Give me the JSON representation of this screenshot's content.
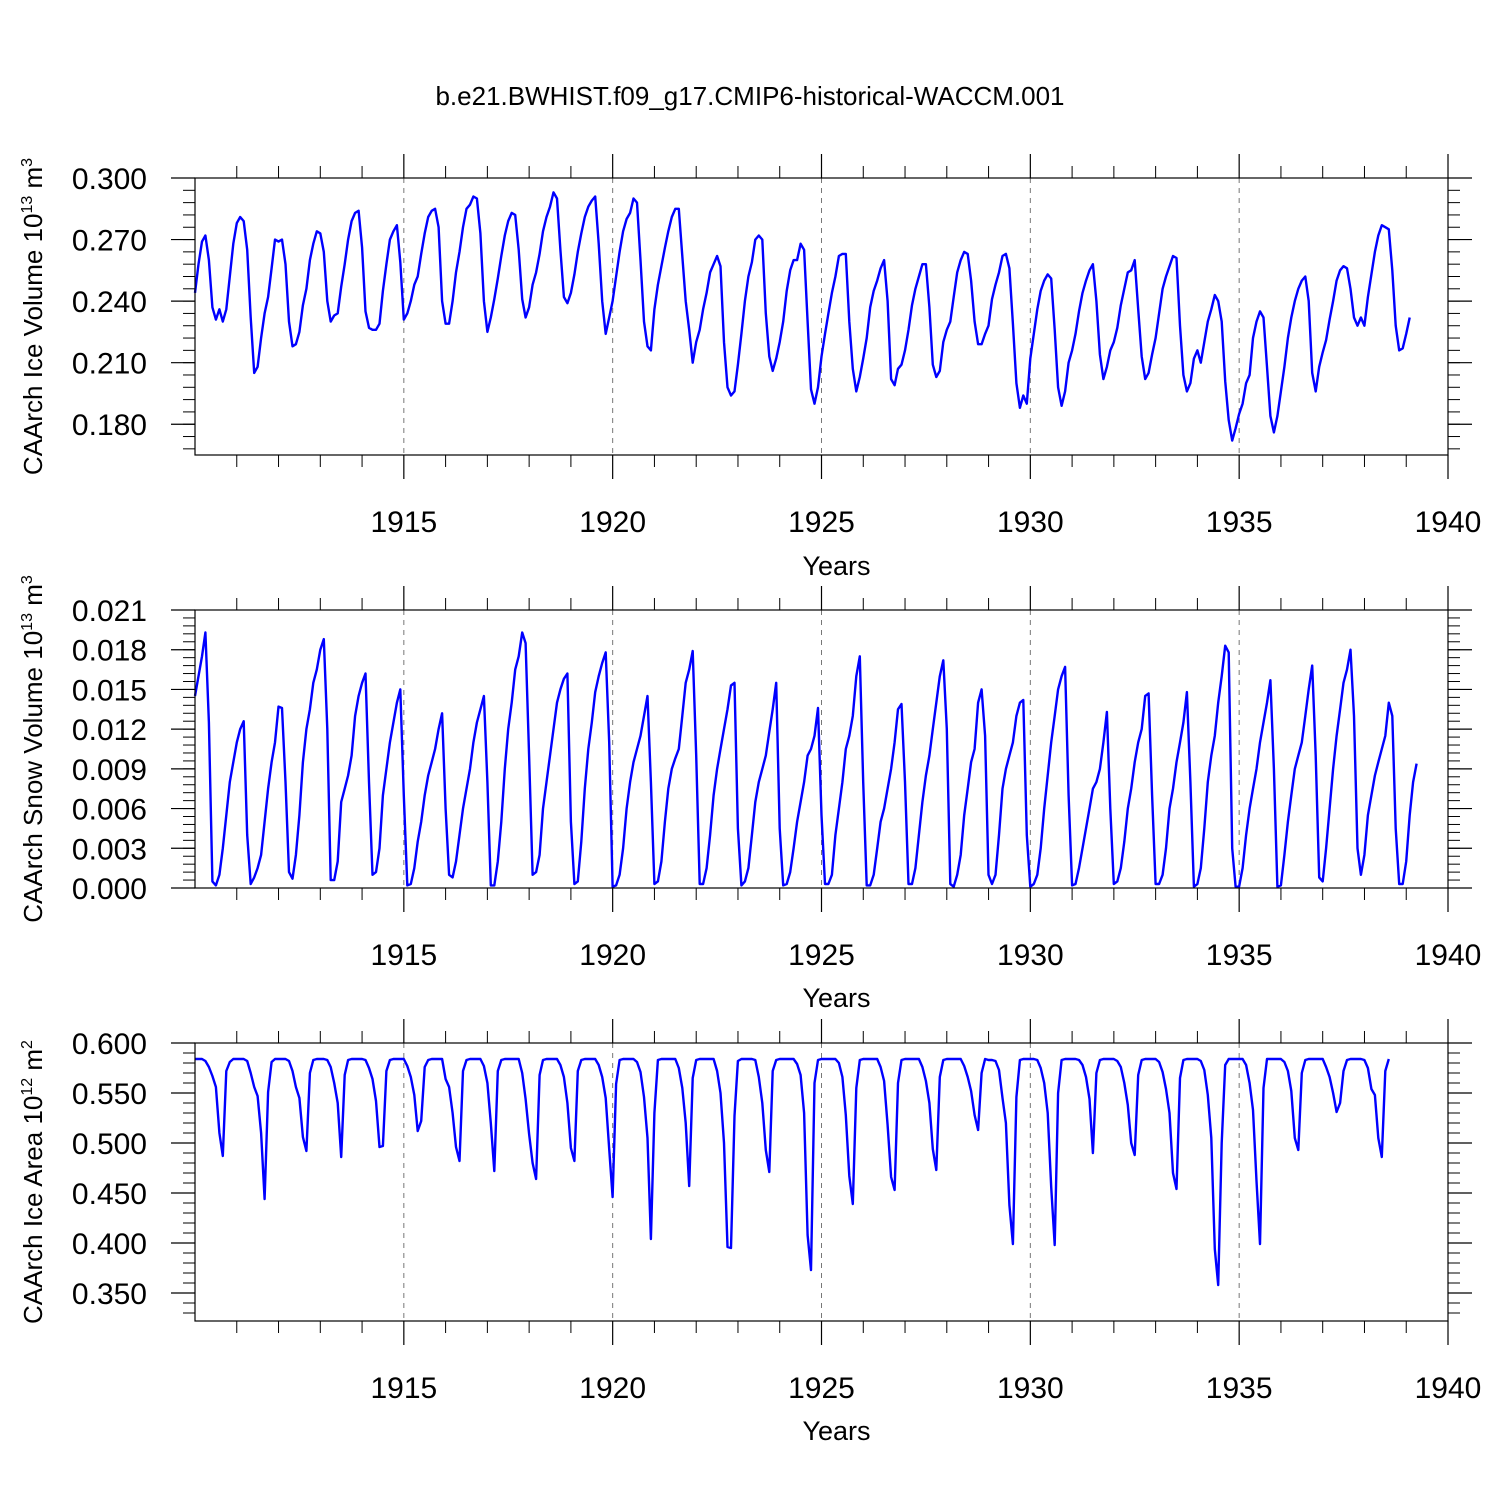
{
  "title": "b.e21.BWHIST.f09_g17.CMIP6-historical-WACCM.001",
  "chart_data": [
    {
      "type": "line",
      "name": "ice-volume",
      "ylabel": {
        "text": "CAArch Ice Volume 10",
        "exp": "13",
        "unit": "m",
        "unit_exp": "3"
      },
      "xlabel": "Years",
      "xlim": [
        1910.0,
        1940.0
      ],
      "ylim": [
        0.165,
        0.3
      ],
      "yticks": [
        "0.300",
        "0.270",
        "0.240",
        "0.210",
        "0.180"
      ],
      "ytick_values": [
        0.3,
        0.27,
        0.24,
        0.21,
        0.18
      ],
      "xticks": [
        "1915",
        "1920",
        "1925",
        "1930",
        "1935",
        "1940"
      ],
      "xtick_values": [
        1915,
        1920,
        1925,
        1930,
        1935,
        1940
      ],
      "color": "#0000ff",
      "x_start": 1910.0,
      "x_step": 0.08333,
      "values": [
        0.244,
        0.258,
        0.269,
        0.272,
        0.26,
        0.237,
        0.231,
        0.236,
        0.23,
        0.236,
        0.252,
        0.268,
        0.278,
        0.281,
        0.279,
        0.265,
        0.232,
        0.205,
        0.208,
        0.222,
        0.234,
        0.242,
        0.256,
        0.27,
        0.269,
        0.27,
        0.258,
        0.23,
        0.218,
        0.219,
        0.225,
        0.238,
        0.246,
        0.26,
        0.268,
        0.274,
        0.273,
        0.264,
        0.24,
        0.23,
        0.233,
        0.234,
        0.247,
        0.258,
        0.27,
        0.279,
        0.283,
        0.284,
        0.266,
        0.235,
        0.227,
        0.226,
        0.226,
        0.229,
        0.245,
        0.258,
        0.27,
        0.274,
        0.277,
        0.259,
        0.231,
        0.234,
        0.24,
        0.248,
        0.252,
        0.263,
        0.273,
        0.281,
        0.284,
        0.285,
        0.276,
        0.24,
        0.229,
        0.229,
        0.24,
        0.254,
        0.264,
        0.276,
        0.285,
        0.287,
        0.291,
        0.29,
        0.273,
        0.24,
        0.225,
        0.232,
        0.241,
        0.251,
        0.262,
        0.272,
        0.279,
        0.283,
        0.282,
        0.265,
        0.241,
        0.232,
        0.237,
        0.248,
        0.254,
        0.263,
        0.274,
        0.281,
        0.286,
        0.293,
        0.29,
        0.265,
        0.242,
        0.239,
        0.244,
        0.253,
        0.264,
        0.273,
        0.281,
        0.286,
        0.289,
        0.291,
        0.268,
        0.24,
        0.224,
        0.232,
        0.24,
        0.252,
        0.264,
        0.274,
        0.28,
        0.283,
        0.29,
        0.288,
        0.26,
        0.23,
        0.218,
        0.216,
        0.236,
        0.248,
        0.257,
        0.266,
        0.274,
        0.281,
        0.285,
        0.285,
        0.262,
        0.24,
        0.226,
        0.21,
        0.22,
        0.226,
        0.236,
        0.244,
        0.254,
        0.258,
        0.262,
        0.257,
        0.22,
        0.198,
        0.194,
        0.196,
        0.209,
        0.224,
        0.24,
        0.252,
        0.259,
        0.27,
        0.272,
        0.27,
        0.234,
        0.213,
        0.206,
        0.212,
        0.22,
        0.23,
        0.245,
        0.255,
        0.26,
        0.26,
        0.268,
        0.265,
        0.23,
        0.197,
        0.19,
        0.198,
        0.213,
        0.224,
        0.234,
        0.244,
        0.252,
        0.262,
        0.263,
        0.263,
        0.23,
        0.207,
        0.196,
        0.203,
        0.212,
        0.222,
        0.237,
        0.245,
        0.25,
        0.256,
        0.26,
        0.24,
        0.202,
        0.199,
        0.207,
        0.209,
        0.216,
        0.226,
        0.238,
        0.246,
        0.252,
        0.258,
        0.258,
        0.237,
        0.209,
        0.203,
        0.206,
        0.22,
        0.226,
        0.23,
        0.242,
        0.254,
        0.26,
        0.264,
        0.263,
        0.25,
        0.23,
        0.219,
        0.219,
        0.224,
        0.228,
        0.241,
        0.248,
        0.254,
        0.262,
        0.263,
        0.256,
        0.229,
        0.2,
        0.188,
        0.194,
        0.19,
        0.212,
        0.224,
        0.236,
        0.245,
        0.25,
        0.253,
        0.251,
        0.226,
        0.198,
        0.189,
        0.196,
        0.21,
        0.216,
        0.224,
        0.235,
        0.244,
        0.25,
        0.255,
        0.258,
        0.24,
        0.214,
        0.202,
        0.208,
        0.216,
        0.22,
        0.227,
        0.238,
        0.246,
        0.254,
        0.255,
        0.26,
        0.236,
        0.213,
        0.202,
        0.205,
        0.214,
        0.222,
        0.234,
        0.246,
        0.252,
        0.257,
        0.262,
        0.261,
        0.228,
        0.204,
        0.196,
        0.2,
        0.212,
        0.216,
        0.21,
        0.22,
        0.23,
        0.236,
        0.243,
        0.24,
        0.23,
        0.201,
        0.182,
        0.172,
        0.178,
        0.185,
        0.19,
        0.2,
        0.204,
        0.222,
        0.23,
        0.235,
        0.232,
        0.208,
        0.184,
        0.176,
        0.184,
        0.196,
        0.208,
        0.222,
        0.232,
        0.24,
        0.246,
        0.25,
        0.252,
        0.24,
        0.205,
        0.196,
        0.208,
        0.215,
        0.221,
        0.231,
        0.24,
        0.25,
        0.255,
        0.257,
        0.256,
        0.246,
        0.232,
        0.228,
        0.232,
        0.228,
        0.242,
        0.253,
        0.264,
        0.272,
        0.277,
        0.276,
        0.275,
        0.255,
        0.228,
        0.216,
        0.217,
        0.224,
        0.232
      ]
    },
    {
      "type": "line",
      "name": "snow-volume",
      "ylabel": {
        "text": "CAArch Snow Volume 10",
        "exp": "13",
        "unit": "m",
        "unit_exp": "3"
      },
      "xlabel": "Years",
      "xlim": [
        1910.0,
        1940.0
      ],
      "ylim": [
        0.0,
        0.021
      ],
      "yticks": [
        "0.021",
        "0.018",
        "0.015",
        "0.012",
        "0.009",
        "0.006",
        "0.003",
        "0.000"
      ],
      "ytick_values": [
        0.021,
        0.018,
        0.015,
        0.012,
        0.009,
        0.006,
        0.003,
        0.0
      ],
      "xticks": [
        "1915",
        "1920",
        "1925",
        "1930",
        "1935",
        "1940"
      ],
      "xtick_values": [
        1915,
        1920,
        1925,
        1930,
        1935,
        1940
      ],
      "color": "#0000ff",
      "x_start": 1910.0,
      "x_step": 0.08333,
      "values": [
        0.0145,
        0.016,
        0.0175,
        0.0193,
        0.0125,
        0.0005,
        0.0002,
        0.001,
        0.003,
        0.0055,
        0.008,
        0.0095,
        0.011,
        0.012,
        0.0126,
        0.004,
        0.0003,
        0.0008,
        0.0015,
        0.0025,
        0.005,
        0.0075,
        0.0095,
        0.011,
        0.0137,
        0.0136,
        0.008,
        0.0012,
        0.0007,
        0.0025,
        0.0055,
        0.0095,
        0.012,
        0.0135,
        0.0155,
        0.0165,
        0.018,
        0.0188,
        0.012,
        0.0006,
        0.0006,
        0.002,
        0.0065,
        0.0075,
        0.0085,
        0.01,
        0.013,
        0.0145,
        0.0155,
        0.0162,
        0.008,
        0.001,
        0.0012,
        0.003,
        0.007,
        0.009,
        0.011,
        0.0125,
        0.014,
        0.015,
        0.007,
        0.0002,
        0.0003,
        0.0015,
        0.0035,
        0.005,
        0.007,
        0.0085,
        0.0095,
        0.0105,
        0.012,
        0.0132,
        0.006,
        0.001,
        0.0008,
        0.002,
        0.004,
        0.006,
        0.0075,
        0.009,
        0.011,
        0.0125,
        0.0135,
        0.0145,
        0.008,
        0.0002,
        0.0002,
        0.002,
        0.005,
        0.009,
        0.012,
        0.014,
        0.0165,
        0.0175,
        0.0193,
        0.0185,
        0.01,
        0.001,
        0.0012,
        0.0025,
        0.006,
        0.008,
        0.01,
        0.012,
        0.014,
        0.015,
        0.0158,
        0.0162,
        0.005,
        0.0003,
        0.0005,
        0.0035,
        0.0075,
        0.0105,
        0.0125,
        0.0148,
        0.016,
        0.017,
        0.0178,
        0.011,
        0.0001,
        0.0002,
        0.001,
        0.003,
        0.006,
        0.008,
        0.0095,
        0.0105,
        0.0115,
        0.013,
        0.0145,
        0.008,
        0.0003,
        0.0005,
        0.002,
        0.005,
        0.0075,
        0.009,
        0.0098,
        0.0105,
        0.013,
        0.0155,
        0.0165,
        0.0179,
        0.01,
        0.0003,
        0.0003,
        0.0015,
        0.004,
        0.007,
        0.009,
        0.0105,
        0.012,
        0.0135,
        0.0153,
        0.0155,
        0.0045,
        0.0002,
        0.0005,
        0.0015,
        0.004,
        0.0065,
        0.008,
        0.009,
        0.01,
        0.0118,
        0.0135,
        0.0155,
        0.0045,
        0.0002,
        0.0003,
        0.0012,
        0.003,
        0.005,
        0.0065,
        0.008,
        0.01,
        0.0105,
        0.0115,
        0.0136,
        0.0055,
        0.0003,
        0.0003,
        0.001,
        0.004,
        0.006,
        0.008,
        0.0105,
        0.0115,
        0.013,
        0.016,
        0.0175,
        0.008,
        0.0002,
        0.0002,
        0.001,
        0.003,
        0.005,
        0.006,
        0.0075,
        0.009,
        0.011,
        0.0135,
        0.0139,
        0.008,
        0.0003,
        0.0003,
        0.0015,
        0.004,
        0.0065,
        0.0085,
        0.01,
        0.012,
        0.014,
        0.016,
        0.0172,
        0.012,
        0.0003,
        0.0001,
        0.001,
        0.0025,
        0.0055,
        0.0075,
        0.0095,
        0.0105,
        0.014,
        0.015,
        0.0115,
        0.001,
        0.0003,
        0.001,
        0.004,
        0.0075,
        0.009,
        0.01,
        0.011,
        0.013,
        0.014,
        0.0142,
        0.004,
        0.0001,
        0.0003,
        0.001,
        0.003,
        0.006,
        0.0085,
        0.011,
        0.013,
        0.015,
        0.016,
        0.0167,
        0.007,
        0.0002,
        0.0003,
        0.0015,
        0.003,
        0.0045,
        0.006,
        0.0075,
        0.008,
        0.009,
        0.011,
        0.0133,
        0.006,
        0.0003,
        0.0005,
        0.0015,
        0.0035,
        0.006,
        0.0075,
        0.0095,
        0.011,
        0.012,
        0.0145,
        0.0147,
        0.007,
        0.0003,
        0.0003,
        0.001,
        0.003,
        0.006,
        0.0075,
        0.0095,
        0.011,
        0.0125,
        0.0148,
        0.008,
        0.0001,
        0.0003,
        0.0015,
        0.0045,
        0.008,
        0.01,
        0.0115,
        0.014,
        0.016,
        0.0183,
        0.0178,
        0.003,
        0.0001,
        0.0001,
        0.0015,
        0.004,
        0.006,
        0.0075,
        0.009,
        0.011,
        0.0125,
        0.014,
        0.0157,
        0.009,
        0.0001,
        0.0002,
        0.0025,
        0.005,
        0.007,
        0.009,
        0.01,
        0.011,
        0.013,
        0.015,
        0.0168,
        0.01,
        0.0008,
        0.0005,
        0.003,
        0.006,
        0.009,
        0.0115,
        0.0135,
        0.0155,
        0.0165,
        0.018,
        0.013,
        0.003,
        0.001,
        0.0025,
        0.0055,
        0.007,
        0.0085,
        0.0095,
        0.0105,
        0.0115,
        0.014,
        0.013,
        0.0045,
        0.0003,
        0.0003,
        0.002,
        0.0055,
        0.008,
        0.0094
      ]
    },
    {
      "type": "line",
      "name": "ice-area",
      "ylabel": {
        "text": "CAArch Ice Area 10",
        "exp": "12",
        "unit": "m",
        "unit_exp": "2"
      },
      "xlabel": "Years",
      "xlim": [
        1910.0,
        1940.0
      ],
      "ylim": [
        0.322,
        0.6
      ],
      "yticks": [
        "0.600",
        "0.550",
        "0.500",
        "0.450",
        "0.400",
        "0.350"
      ],
      "ytick_values": [
        0.6,
        0.55,
        0.5,
        0.45,
        0.4,
        0.35
      ],
      "xticks": [
        "1915",
        "1920",
        "1925",
        "1930",
        "1935",
        "1940"
      ],
      "xtick_values": [
        1915,
        1920,
        1925,
        1930,
        1935,
        1940
      ],
      "color": "#0000ff",
      "x_start": 1910.0,
      "x_step": 0.08333,
      "values": [
        0.584,
        0.584,
        0.584,
        0.582,
        0.576,
        0.567,
        0.556,
        0.51,
        0.487,
        0.572,
        0.581,
        0.584,
        0.584,
        0.584,
        0.584,
        0.582,
        0.57,
        0.556,
        0.547,
        0.51,
        0.444,
        0.551,
        0.581,
        0.584,
        0.584,
        0.584,
        0.584,
        0.582,
        0.572,
        0.556,
        0.545,
        0.506,
        0.492,
        0.57,
        0.583,
        0.584,
        0.584,
        0.584,
        0.583,
        0.576,
        0.56,
        0.54,
        0.486,
        0.568,
        0.583,
        0.584,
        0.584,
        0.584,
        0.584,
        0.583,
        0.575,
        0.564,
        0.542,
        0.496,
        0.497,
        0.572,
        0.583,
        0.584,
        0.584,
        0.584,
        0.584,
        0.577,
        0.566,
        0.548,
        0.512,
        0.522,
        0.576,
        0.583,
        0.584,
        0.584,
        0.584,
        0.584,
        0.564,
        0.556,
        0.53,
        0.496,
        0.482,
        0.572,
        0.583,
        0.584,
        0.584,
        0.584,
        0.584,
        0.577,
        0.56,
        0.52,
        0.472,
        0.572,
        0.583,
        0.584,
        0.584,
        0.584,
        0.584,
        0.584,
        0.57,
        0.544,
        0.509,
        0.48,
        0.464,
        0.568,
        0.583,
        0.584,
        0.584,
        0.584,
        0.584,
        0.578,
        0.566,
        0.54,
        0.495,
        0.482,
        0.572,
        0.583,
        0.584,
        0.584,
        0.584,
        0.584,
        0.578,
        0.566,
        0.545,
        0.494,
        0.446,
        0.559,
        0.583,
        0.584,
        0.584,
        0.584,
        0.584,
        0.581,
        0.571,
        0.546,
        0.505,
        0.404,
        0.53,
        0.583,
        0.584,
        0.584,
        0.584,
        0.584,
        0.584,
        0.575,
        0.555,
        0.52,
        0.457,
        0.565,
        0.583,
        0.584,
        0.584,
        0.584,
        0.584,
        0.584,
        0.572,
        0.55,
        0.5,
        0.396,
        0.395,
        0.527,
        0.582,
        0.584,
        0.584,
        0.584,
        0.584,
        0.583,
        0.566,
        0.54,
        0.493,
        0.471,
        0.572,
        0.583,
        0.584,
        0.584,
        0.584,
        0.584,
        0.584,
        0.579,
        0.568,
        0.53,
        0.408,
        0.373,
        0.56,
        0.583,
        0.584,
        0.584,
        0.584,
        0.584,
        0.584,
        0.58,
        0.566,
        0.528,
        0.467,
        0.439,
        0.555,
        0.583,
        0.584,
        0.584,
        0.584,
        0.584,
        0.584,
        0.576,
        0.562,
        0.518,
        0.466,
        0.453,
        0.56,
        0.583,
        0.584,
        0.584,
        0.584,
        0.584,
        0.584,
        0.576,
        0.562,
        0.54,
        0.494,
        0.473,
        0.566,
        0.583,
        0.584,
        0.584,
        0.584,
        0.584,
        0.584,
        0.577,
        0.566,
        0.552,
        0.528,
        0.513,
        0.57,
        0.584,
        0.583,
        0.583,
        0.582,
        0.573,
        0.545,
        0.52,
        0.438,
        0.399,
        0.546,
        0.583,
        0.584,
        0.584,
        0.584,
        0.584,
        0.583,
        0.575,
        0.56,
        0.53,
        0.456,
        0.398,
        0.55,
        0.583,
        0.584,
        0.584,
        0.584,
        0.584,
        0.583,
        0.578,
        0.566,
        0.544,
        0.49,
        0.57,
        0.583,
        0.584,
        0.584,
        0.584,
        0.584,
        0.582,
        0.576,
        0.56,
        0.538,
        0.5,
        0.488,
        0.568,
        0.583,
        0.584,
        0.584,
        0.584,
        0.584,
        0.581,
        0.571,
        0.554,
        0.53,
        0.47,
        0.454,
        0.565,
        0.583,
        0.584,
        0.584,
        0.584,
        0.584,
        0.582,
        0.573,
        0.548,
        0.505,
        0.394,
        0.358,
        0.5,
        0.578,
        0.584,
        0.584,
        0.584,
        0.584,
        0.584,
        0.578,
        0.56,
        0.533,
        0.462,
        0.399,
        0.555,
        0.584,
        0.584,
        0.584,
        0.584,
        0.584,
        0.581,
        0.572,
        0.552,
        0.505,
        0.493,
        0.57,
        0.583,
        0.584,
        0.584,
        0.584,
        0.584,
        0.584,
        0.576,
        0.566,
        0.55,
        0.531,
        0.54,
        0.572,
        0.583,
        0.584,
        0.584,
        0.584,
        0.584,
        0.583,
        0.575,
        0.554,
        0.548,
        0.505,
        0.486,
        0.572,
        0.584
      ]
    }
  ]
}
